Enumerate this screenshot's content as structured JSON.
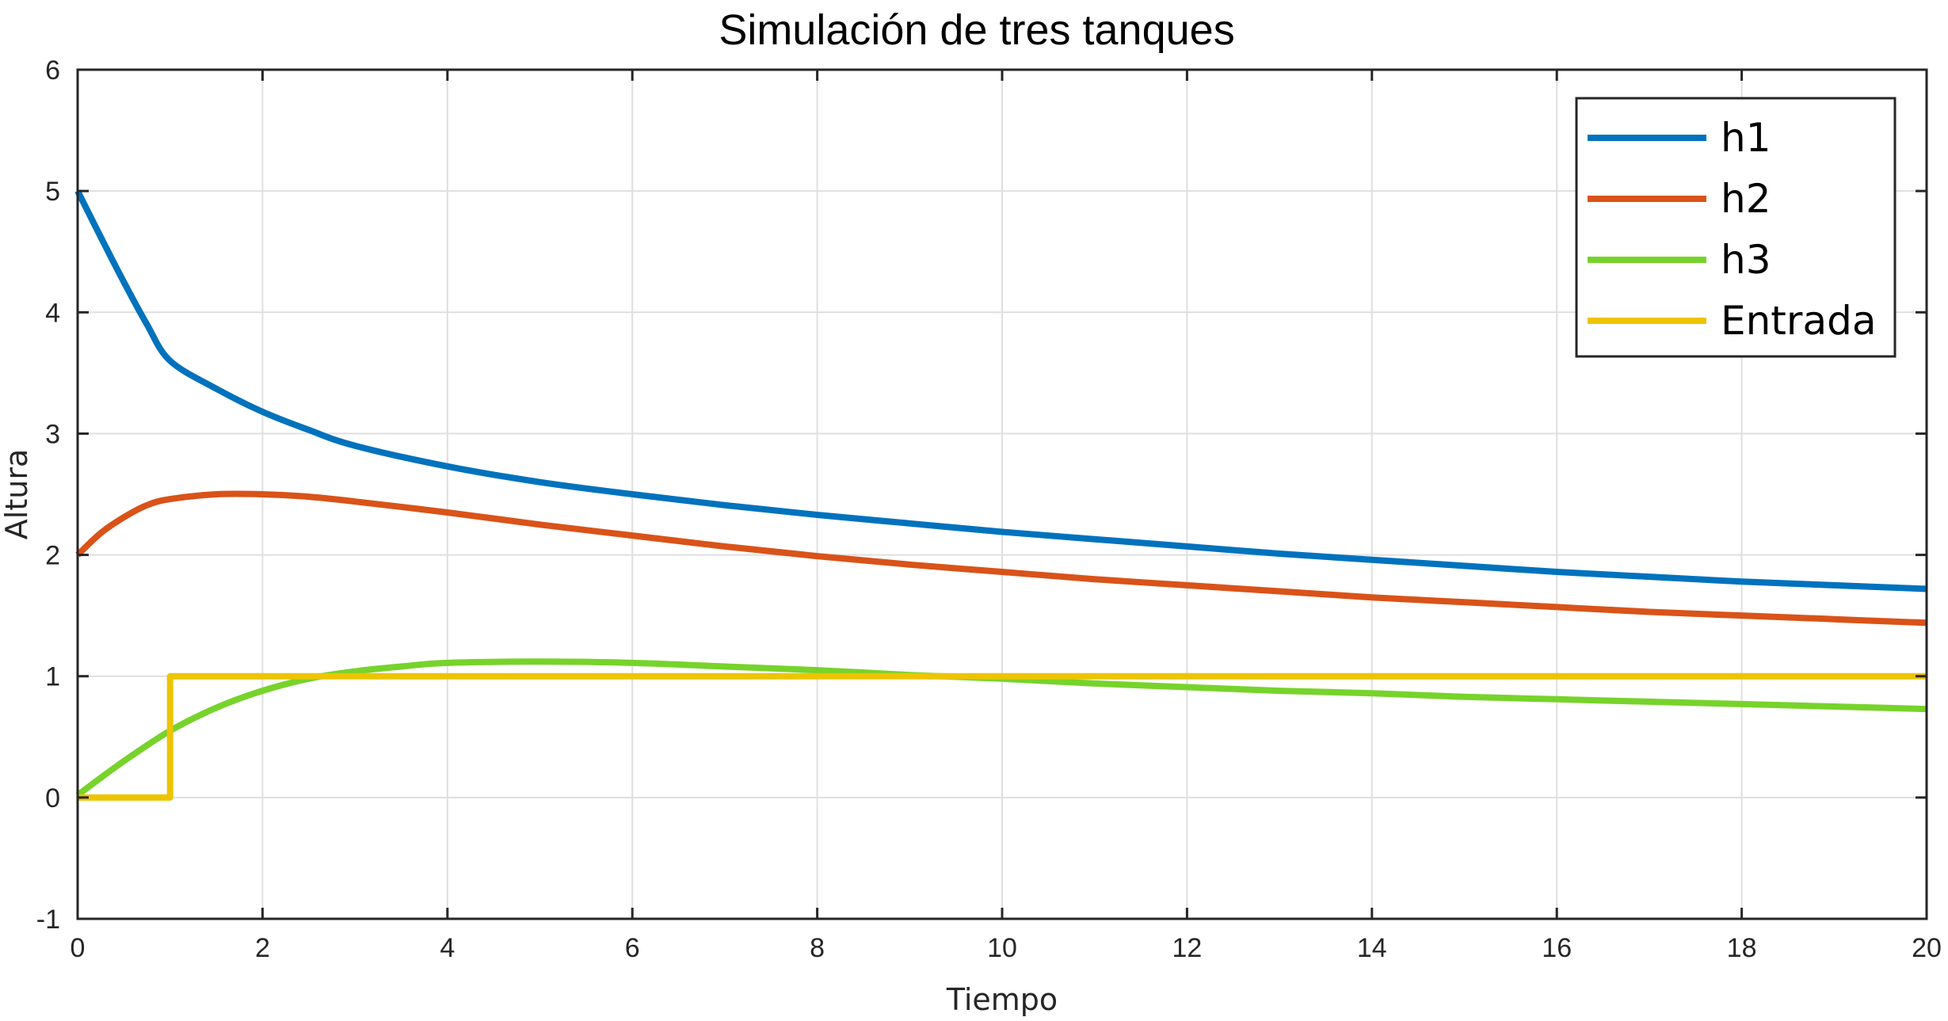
{
  "chart_data": {
    "type": "line",
    "title": "Simulación de tres tanques",
    "xlabel": "Tiempo",
    "ylabel": "Altura",
    "xlim": [
      0,
      20
    ],
    "ylim": [
      -1,
      6
    ],
    "xticks": [
      0,
      2,
      4,
      6,
      8,
      10,
      12,
      14,
      16,
      18,
      20
    ],
    "yticks": [
      -1,
      0,
      1,
      2,
      3,
      4,
      5,
      6
    ],
    "xtick_labels": [
      "0",
      "2",
      "4",
      "6",
      "8",
      "10",
      "12",
      "14",
      "16",
      "18",
      "20"
    ],
    "ytick_labels": [
      "-1",
      "0",
      "1",
      "2",
      "3",
      "4",
      "5",
      "6"
    ],
    "grid": true,
    "legend_position": "top-right",
    "series": [
      {
        "name": "h1",
        "color": "#0072BD",
        "x": [
          0,
          0.25,
          0.5,
          0.75,
          1,
          1.5,
          2,
          2.5,
          3,
          4,
          5,
          6,
          7,
          8,
          9,
          10,
          11,
          12,
          13,
          14,
          15,
          16,
          17,
          18,
          19,
          20
        ],
        "y": [
          5,
          4.62,
          4.25,
          3.9,
          3.6,
          3.37,
          3.18,
          3.03,
          2.9,
          2.73,
          2.6,
          2.5,
          2.41,
          2.33,
          2.26,
          2.19,
          2.13,
          2.07,
          2.01,
          1.96,
          1.91,
          1.86,
          1.82,
          1.78,
          1.75,
          1.72
        ]
      },
      {
        "name": "h2",
        "color": "#D95319",
        "x": [
          0,
          0.25,
          0.5,
          0.75,
          1,
          1.5,
          2,
          2.5,
          3,
          4,
          5,
          6,
          7,
          8,
          9,
          10,
          11,
          12,
          13,
          14,
          15,
          16,
          17,
          18,
          19,
          20
        ],
        "y": [
          2.0,
          2.18,
          2.31,
          2.41,
          2.46,
          2.5,
          2.5,
          2.48,
          2.44,
          2.35,
          2.25,
          2.16,
          2.07,
          1.99,
          1.92,
          1.86,
          1.8,
          1.75,
          1.7,
          1.65,
          1.61,
          1.57,
          1.53,
          1.5,
          1.47,
          1.44
        ]
      },
      {
        "name": "h3",
        "color": "#77D32B",
        "x": [
          0,
          0.5,
          1,
          1.5,
          2,
          2.5,
          3,
          3.5,
          4,
          5,
          6,
          7,
          8,
          9,
          10,
          11,
          12,
          13,
          14,
          15,
          16,
          17,
          18,
          19,
          20
        ],
        "y": [
          0.02,
          0.3,
          0.55,
          0.74,
          0.88,
          0.98,
          1.04,
          1.08,
          1.11,
          1.12,
          1.11,
          1.08,
          1.05,
          1.01,
          0.98,
          0.94,
          0.91,
          0.88,
          0.86,
          0.83,
          0.81,
          0.79,
          0.77,
          0.75,
          0.73
        ]
      },
      {
        "name": "Entrada",
        "color": "#EDC400",
        "x": [
          0,
          1,
          1,
          20
        ],
        "y": [
          0,
          0,
          1,
          1
        ]
      }
    ]
  }
}
